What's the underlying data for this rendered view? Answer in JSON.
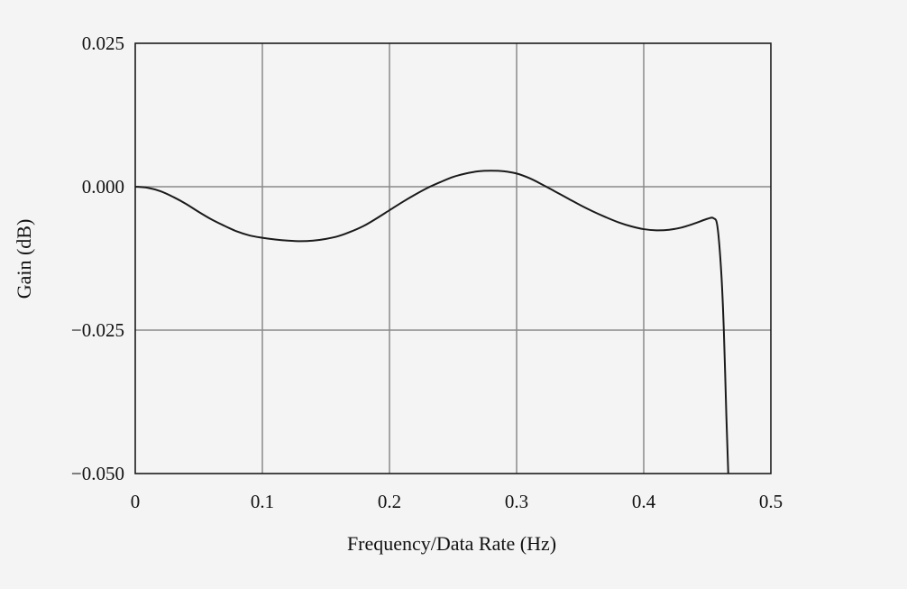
{
  "chart_data": {
    "type": "line",
    "title": "",
    "xlabel": "Frequency/Data Rate (Hz)",
    "ylabel": "Gain (dB)",
    "xlim": [
      0,
      0.5
    ],
    "ylim": [
      -0.05,
      0.025
    ],
    "grid": true,
    "colors": {
      "background": "#f4f4f4",
      "plot_area": "#f4f4f4",
      "grid": "#8a8a8a",
      "frame": "#1a1a1a",
      "line": "#1a1a1a"
    },
    "x_ticks": [
      {
        "value": 0,
        "label": "0"
      },
      {
        "value": 0.1,
        "label": "0.1"
      },
      {
        "value": 0.2,
        "label": "0.2"
      },
      {
        "value": 0.3,
        "label": "0.3"
      },
      {
        "value": 0.4,
        "label": "0.4"
      },
      {
        "value": 0.5,
        "label": "0.5"
      }
    ],
    "y_ticks": [
      {
        "value": 0.025,
        "label": "0.025"
      },
      {
        "value": 0.0,
        "label": "0.000"
      },
      {
        "value": -0.025,
        "label": "−0.025"
      },
      {
        "value": -0.05,
        "label": "−0.050"
      }
    ],
    "series": [
      {
        "x": [
          0,
          0.01,
          0.02,
          0.03,
          0.04,
          0.05,
          0.06,
          0.07,
          0.08,
          0.09,
          0.1,
          0.11,
          0.12,
          0.13,
          0.14,
          0.15,
          0.16,
          0.17,
          0.18,
          0.19,
          0.2,
          0.21,
          0.22,
          0.23,
          0.24,
          0.25,
          0.26,
          0.27,
          0.28,
          0.29,
          0.3,
          0.31,
          0.32,
          0.33,
          0.34,
          0.35,
          0.36,
          0.37,
          0.38,
          0.39,
          0.4,
          0.41,
          0.42,
          0.43,
          0.44,
          0.45,
          0.455,
          0.458,
          0.461,
          0.463,
          0.465,
          0.4665
        ],
        "y": [
          0,
          -0.0002,
          -0.0008,
          -0.0018,
          -0.003,
          -0.0044,
          -0.0057,
          -0.0068,
          -0.0078,
          -0.0085,
          -0.0089,
          -0.0092,
          -0.0094,
          -0.0095,
          -0.0094,
          -0.0091,
          -0.0086,
          -0.0078,
          -0.0068,
          -0.0055,
          -0.0041,
          -0.0027,
          -0.0014,
          -0.0002,
          0.0008,
          0.0017,
          0.0023,
          0.0027,
          0.0028,
          0.0027,
          0.0023,
          0.0015,
          0.0004,
          -0.0008,
          -0.002,
          -0.0032,
          -0.0043,
          -0.0053,
          -0.0062,
          -0.0069,
          -0.0074,
          -0.0076,
          -0.0075,
          -0.0071,
          -0.0064,
          -0.0056,
          -0.0055,
          -0.007,
          -0.015,
          -0.025,
          -0.04,
          -0.05
        ]
      }
    ]
  }
}
